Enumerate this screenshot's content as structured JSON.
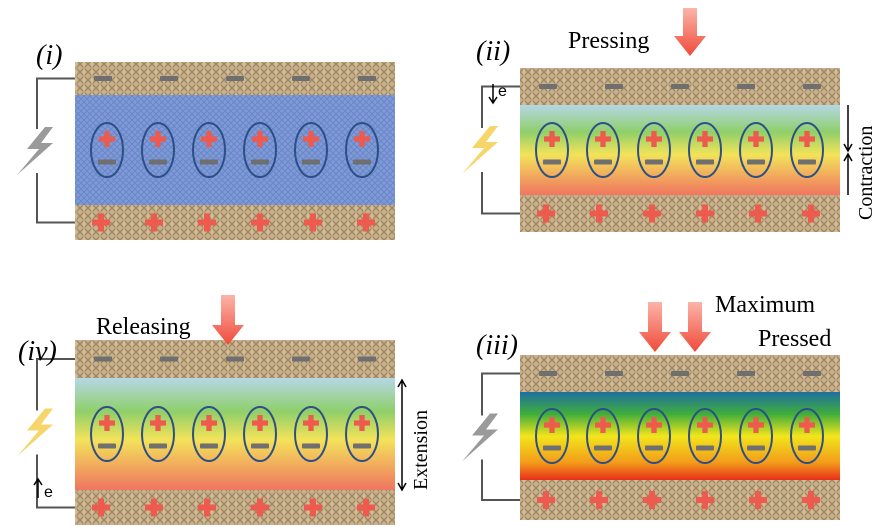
{
  "panels": [
    {
      "label": "(i)"
    },
    {
      "label": "(ii)",
      "action": "Pressing",
      "side_label": "Contraction",
      "electron": "e"
    },
    {
      "label": "(iii)",
      "action_lines": [
        "Maximum",
        "Pressed"
      ]
    },
    {
      "label": "(iv)",
      "action": "Releasing",
      "side_label": "Extension",
      "electron": "e"
    }
  ]
}
